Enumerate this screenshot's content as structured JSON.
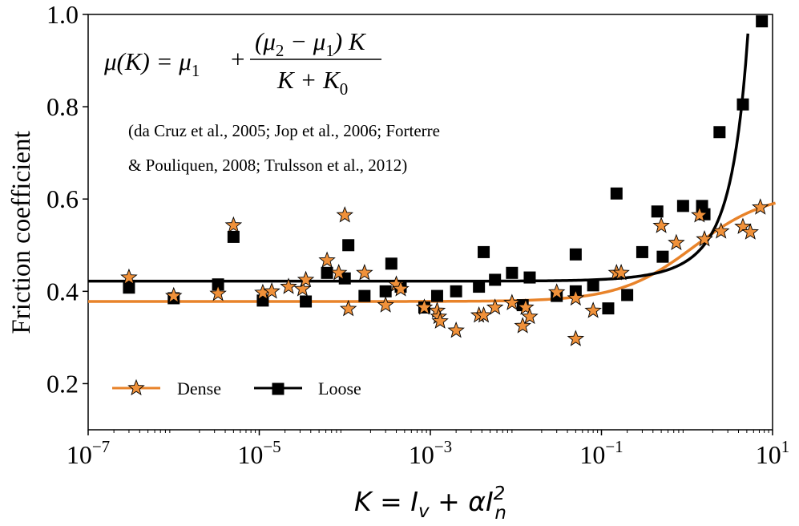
{
  "chart_data": {
    "type": "scatter",
    "x_scale": "log",
    "xlim": [
      1e-07,
      10
    ],
    "ylim": [
      0.1,
      1.0
    ],
    "ylabel": "Friction coefficient",
    "xlabel": {
      "base": "K = I",
      "sub1": "v",
      "mid": " + αI",
      "sup": "2",
      "sub2": "n"
    },
    "y_ticks": [
      0.2,
      0.4,
      0.6,
      0.8,
      1.0
    ],
    "y_tick_labels": [
      "0.2",
      "0.4",
      "0.6",
      "0.8",
      "1.0"
    ],
    "x_ticks": [
      {
        "value": 1e-07,
        "base": "10",
        "exp": "−7"
      },
      {
        "value": 1e-05,
        "base": "10",
        "exp": "−5"
      },
      {
        "value": 0.001,
        "base": "10",
        "exp": "−3"
      },
      {
        "value": 0.1,
        "base": "10",
        "exp": "−1"
      },
      {
        "value": 10,
        "base": "10",
        "exp": "1"
      }
    ],
    "annotation": {
      "equation": {
        "lhs": "μ(K) = μ",
        "lhs_sub": "1",
        "plus": "+",
        "num": "(μ",
        "num_sub2": "2",
        "num_mid": " − μ",
        "num_sub1": "1",
        "num_end": ") K",
        "den": "K + K",
        "den_sub": "0"
      },
      "citation_lines": [
        "(da Cruz et al., 2005; Jop et al., 2006; Forterre",
        "& Pouliquen, 2008; Trulsson et al., 2012)"
      ]
    },
    "legend": {
      "position": "lower-left",
      "entries": [
        "Dense",
        "Loose"
      ]
    },
    "colors": {
      "dense": "#e8832a",
      "dense_marker": "#f0913a",
      "loose": "#000000"
    },
    "series": [
      {
        "name": "Dense",
        "marker": "star",
        "x": [
          3e-07,
          1e-06,
          3.3e-06,
          5e-06,
          1.1e-05,
          1.4e-05,
          2.2e-05,
          3.2e-05,
          3.5e-05,
          6.2e-05,
          8.5e-05,
          0.0001,
          0.00011,
          0.00017,
          0.0003,
          0.0004,
          0.00045,
          0.00085,
          0.0012,
          0.00125,
          0.0013,
          0.002,
          0.0037,
          0.0042,
          0.0057,
          0.009,
          0.012,
          0.013,
          0.0145,
          0.03,
          0.05,
          0.05,
          0.08,
          0.15,
          0.17,
          0.5,
          0.75,
          1.4,
          1.6,
          2.5,
          4.5,
          5.5,
          7.2
        ],
        "y": [
          0.43,
          0.39,
          0.395,
          0.543,
          0.397,
          0.4,
          0.41,
          0.405,
          0.425,
          0.467,
          0.44,
          0.565,
          0.362,
          0.44,
          0.37,
          0.415,
          0.405,
          0.365,
          0.358,
          0.345,
          0.335,
          0.315,
          0.348,
          0.348,
          0.365,
          0.375,
          0.325,
          0.365,
          0.345,
          0.398,
          0.297,
          0.385,
          0.358,
          0.44,
          0.44,
          0.542,
          0.505,
          0.565,
          0.513,
          0.53,
          0.54,
          0.528,
          0.582
        ]
      },
      {
        "name": "Loose",
        "marker": "square",
        "x": [
          3e-07,
          1e-06,
          3.3e-06,
          5e-06,
          1.1e-05,
          3.5e-05,
          6.2e-05,
          0.0001,
          0.00011,
          0.00017,
          0.0003,
          0.00035,
          0.00045,
          0.00085,
          0.0012,
          0.002,
          0.0037,
          0.0042,
          0.0057,
          0.009,
          0.012,
          0.0145,
          0.03,
          0.05,
          0.05,
          0.08,
          0.12,
          0.15,
          0.2,
          0.3,
          0.45,
          0.52,
          0.9,
          1.5,
          1.6,
          2.4,
          4.5,
          7.5
        ],
        "y": [
          0.408,
          0.385,
          0.415,
          0.518,
          0.38,
          0.378,
          0.44,
          0.428,
          0.5,
          0.39,
          0.4,
          0.46,
          0.41,
          0.365,
          0.39,
          0.4,
          0.41,
          0.485,
          0.425,
          0.44,
          0.37,
          0.43,
          0.39,
          0.4,
          0.48,
          0.413,
          0.363,
          0.612,
          0.392,
          0.485,
          0.573,
          0.475,
          0.585,
          0.585,
          0.567,
          0.745,
          0.805,
          0.985
        ]
      }
    ],
    "fit_curves": [
      {
        "name": "Dense",
        "model": "mu1 + (mu2 - mu1) K / (K + K0)",
        "mu1": 0.378,
        "mu2": 0.615,
        "K0": 1.2
      },
      {
        "name": "Loose",
        "model": "exponential",
        "base": 0.422,
        "amp": 0.106,
        "scale": 2.86
      }
    ]
  }
}
